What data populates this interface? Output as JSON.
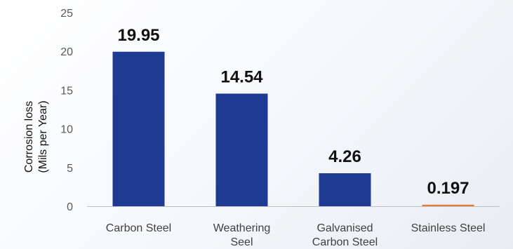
{
  "chart_data": {
    "type": "bar",
    "categories": [
      [
        "Carbon Steel"
      ],
      [
        "Weathering",
        "Seel"
      ],
      [
        "Galvanised",
        "Carbon Steel"
      ],
      [
        "Stainless Steel"
      ]
    ],
    "values": [
      19.95,
      14.54,
      4.26,
      0.197
    ],
    "data_labels": [
      "19.95",
      "14.54",
      "4.26",
      "0.197"
    ],
    "ylabel_lines": [
      "Corrosion loss",
      "(Mils  per Year)"
    ],
    "xlabel": "",
    "ylim": [
      0,
      25
    ],
    "yticks": [
      0,
      5,
      10,
      15,
      20,
      25
    ],
    "grid": false,
    "legend": "none",
    "bar_colors": [
      "#1f3a93",
      "#1f3a93",
      "#1f3a93",
      "#e07b39"
    ],
    "axis_color": "#bfbfbf"
  }
}
